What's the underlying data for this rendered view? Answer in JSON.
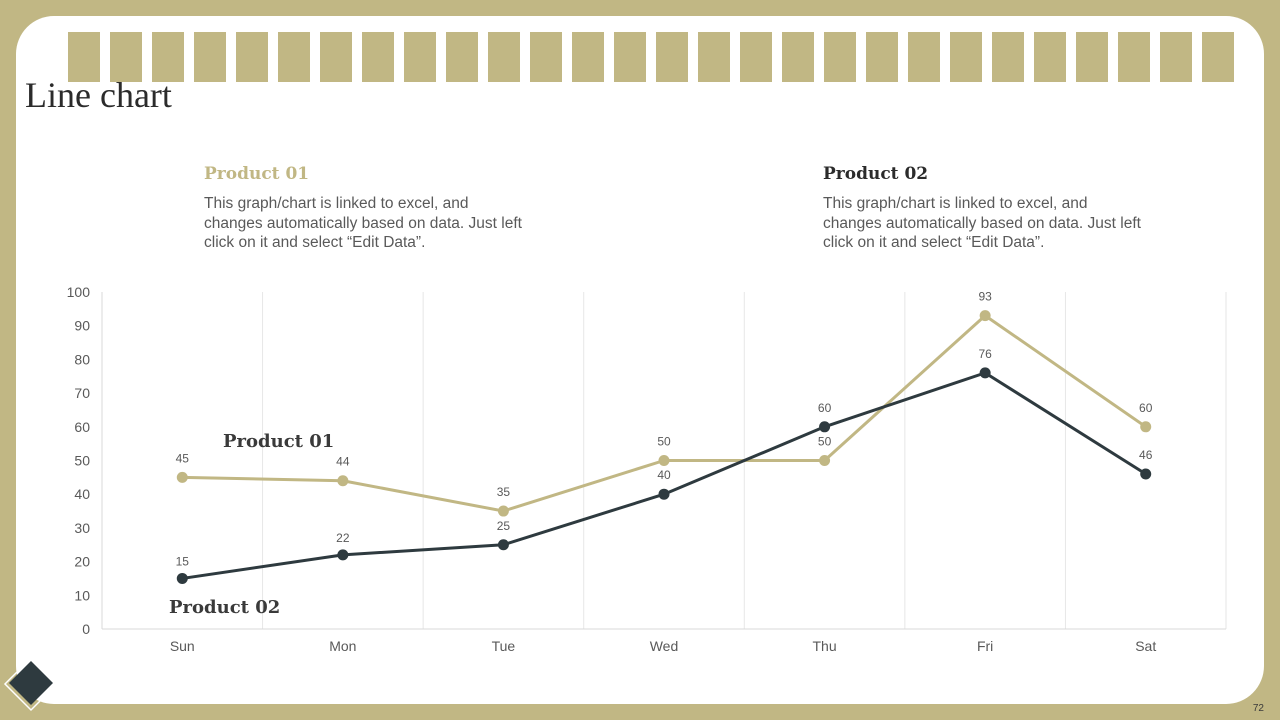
{
  "page": {
    "title": "Line chart",
    "page_number": "72",
    "colors": {
      "background": "#c1b784",
      "card": "#ffffff",
      "product01": "#c1b784",
      "product02": "#2e3a3f"
    }
  },
  "descriptions": [
    {
      "heading": "Product 01",
      "text": "This graph/chart is linked to excel, and changes automatically based on data. Just left click on it and select “Edit Data”."
    },
    {
      "heading": "Product 02",
      "text": "This graph/chart is linked to excel, and changes automatically based on data. Just left click on it and select “Edit Data”."
    }
  ],
  "chart_data": {
    "type": "line",
    "title": "",
    "xlabel": "",
    "ylabel": "",
    "categories": [
      "Sun",
      "Mon",
      "Tue",
      "Wed",
      "Thu",
      "Fri",
      "Sat"
    ],
    "ylim": [
      0,
      100
    ],
    "yticks": [
      0,
      10,
      20,
      30,
      40,
      50,
      60,
      70,
      80,
      90,
      100
    ],
    "grid": "vertical",
    "series": [
      {
        "name": "Product 01",
        "color": "#c1b784",
        "values": [
          45,
          44,
          35,
          50,
          50,
          93,
          60
        ]
      },
      {
        "name": "Product 02",
        "color": "#2e3a3f",
        "values": [
          15,
          22,
          25,
          40,
          60,
          76,
          46
        ]
      }
    ],
    "annotations": [
      {
        "text": "Product 01",
        "series": "Product 01"
      },
      {
        "text": "Product 02",
        "series": "Product 02"
      }
    ]
  }
}
